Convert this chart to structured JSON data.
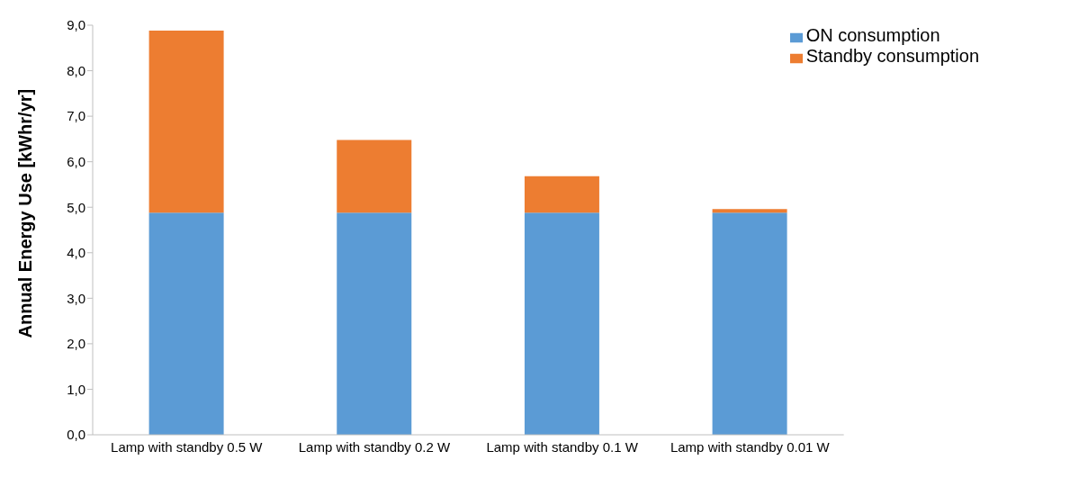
{
  "chart_data": {
    "type": "bar",
    "stacked": true,
    "ylabel": "Annual Energy Use [kWhr/yr]",
    "categories": [
      "Lamp with standby 0.5 W",
      "Lamp with standby 0.2 W",
      "Lamp with standby 0.1 W",
      "Lamp with standby 0.01 W"
    ],
    "series": [
      {
        "name": "ON consumption",
        "color": "#5b9bd5",
        "values": [
          4.88,
          4.88,
          4.88,
          4.88
        ]
      },
      {
        "name": "Standby consumption",
        "color": "#ed7d31",
        "values": [
          4.0,
          1.6,
          0.8,
          0.08
        ]
      }
    ],
    "ylim": [
      0,
      9
    ],
    "yticks": [
      {
        "value": 0,
        "label": "0,0"
      },
      {
        "value": 1,
        "label": "1,0"
      },
      {
        "value": 2,
        "label": "2,0"
      },
      {
        "value": 3,
        "label": "3,0"
      },
      {
        "value": 4,
        "label": "4,0"
      },
      {
        "value": 5,
        "label": "5,0"
      },
      {
        "value": 6,
        "label": "6,0"
      },
      {
        "value": 7,
        "label": "7,0"
      },
      {
        "value": 8,
        "label": "8,0"
      },
      {
        "value": 9,
        "label": "9,0"
      }
    ],
    "grid": false,
    "legend": "top right"
  }
}
